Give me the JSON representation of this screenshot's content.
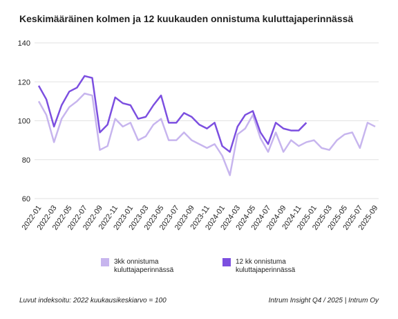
{
  "chart_data": {
    "type": "line",
    "title": "Keskimääräinen kolmen ja 12 kuukauden onnistuma kuluttajaperinnässä",
    "categories": [
      "2022-01",
      null,
      "2022-03",
      null,
      "2022-05",
      null,
      "2022-07",
      null,
      "2022-09",
      null,
      "2022-11",
      null,
      "2023-01",
      null,
      "2023-03",
      null,
      "2023-05",
      null,
      "2023-07",
      null,
      "2023-09",
      null,
      "2023-11",
      null,
      "2024-01",
      null,
      "2024-03",
      null,
      "2024-05",
      null,
      "2024-07",
      null,
      "2024-09",
      null,
      "2024-11",
      null,
      "2025-01",
      null,
      "2025-03",
      null,
      "2025-05",
      null,
      "2025-07",
      null,
      "2025-09"
    ],
    "series": [
      {
        "name": "3kk onnistuma kuluttajaperinnässä",
        "color": "#c7b5ee",
        "values": [
          110,
          103,
          89,
          101,
          107,
          110,
          114,
          113,
          85,
          87,
          101,
          97,
          99,
          90,
          92,
          98,
          101,
          90,
          90,
          94,
          90,
          88,
          86,
          88,
          82,
          72,
          93,
          96,
          103,
          91,
          84,
          94,
          84,
          90,
          87,
          89,
          90,
          86,
          85,
          90,
          93,
          94,
          86,
          99,
          97
        ]
      },
      {
        "name": "12 kk onnistuma kuluttajaperinnässä",
        "color": "#7c4fe0",
        "values": [
          118,
          111,
          97,
          108,
          115,
          117,
          123,
          122,
          94,
          98,
          112,
          109,
          108,
          101,
          102,
          108,
          113,
          99,
          99,
          104,
          102,
          98,
          96,
          99,
          87,
          84,
          97,
          103,
          105,
          94,
          88,
          99,
          96,
          95,
          95,
          99,
          null,
          null,
          null,
          null,
          null,
          null,
          null,
          null,
          null
        ]
      }
    ],
    "ylim": [
      60,
      140
    ],
    "yticks": [
      60,
      80,
      100,
      120,
      140
    ],
    "grid": true,
    "legend": "bottom",
    "note_left": "Luvut indeksoitu: 2022 kuukausikeskiarvo = 100",
    "note_right": "Intrum Insight Q4 / 2025 | Intrum Oy"
  }
}
